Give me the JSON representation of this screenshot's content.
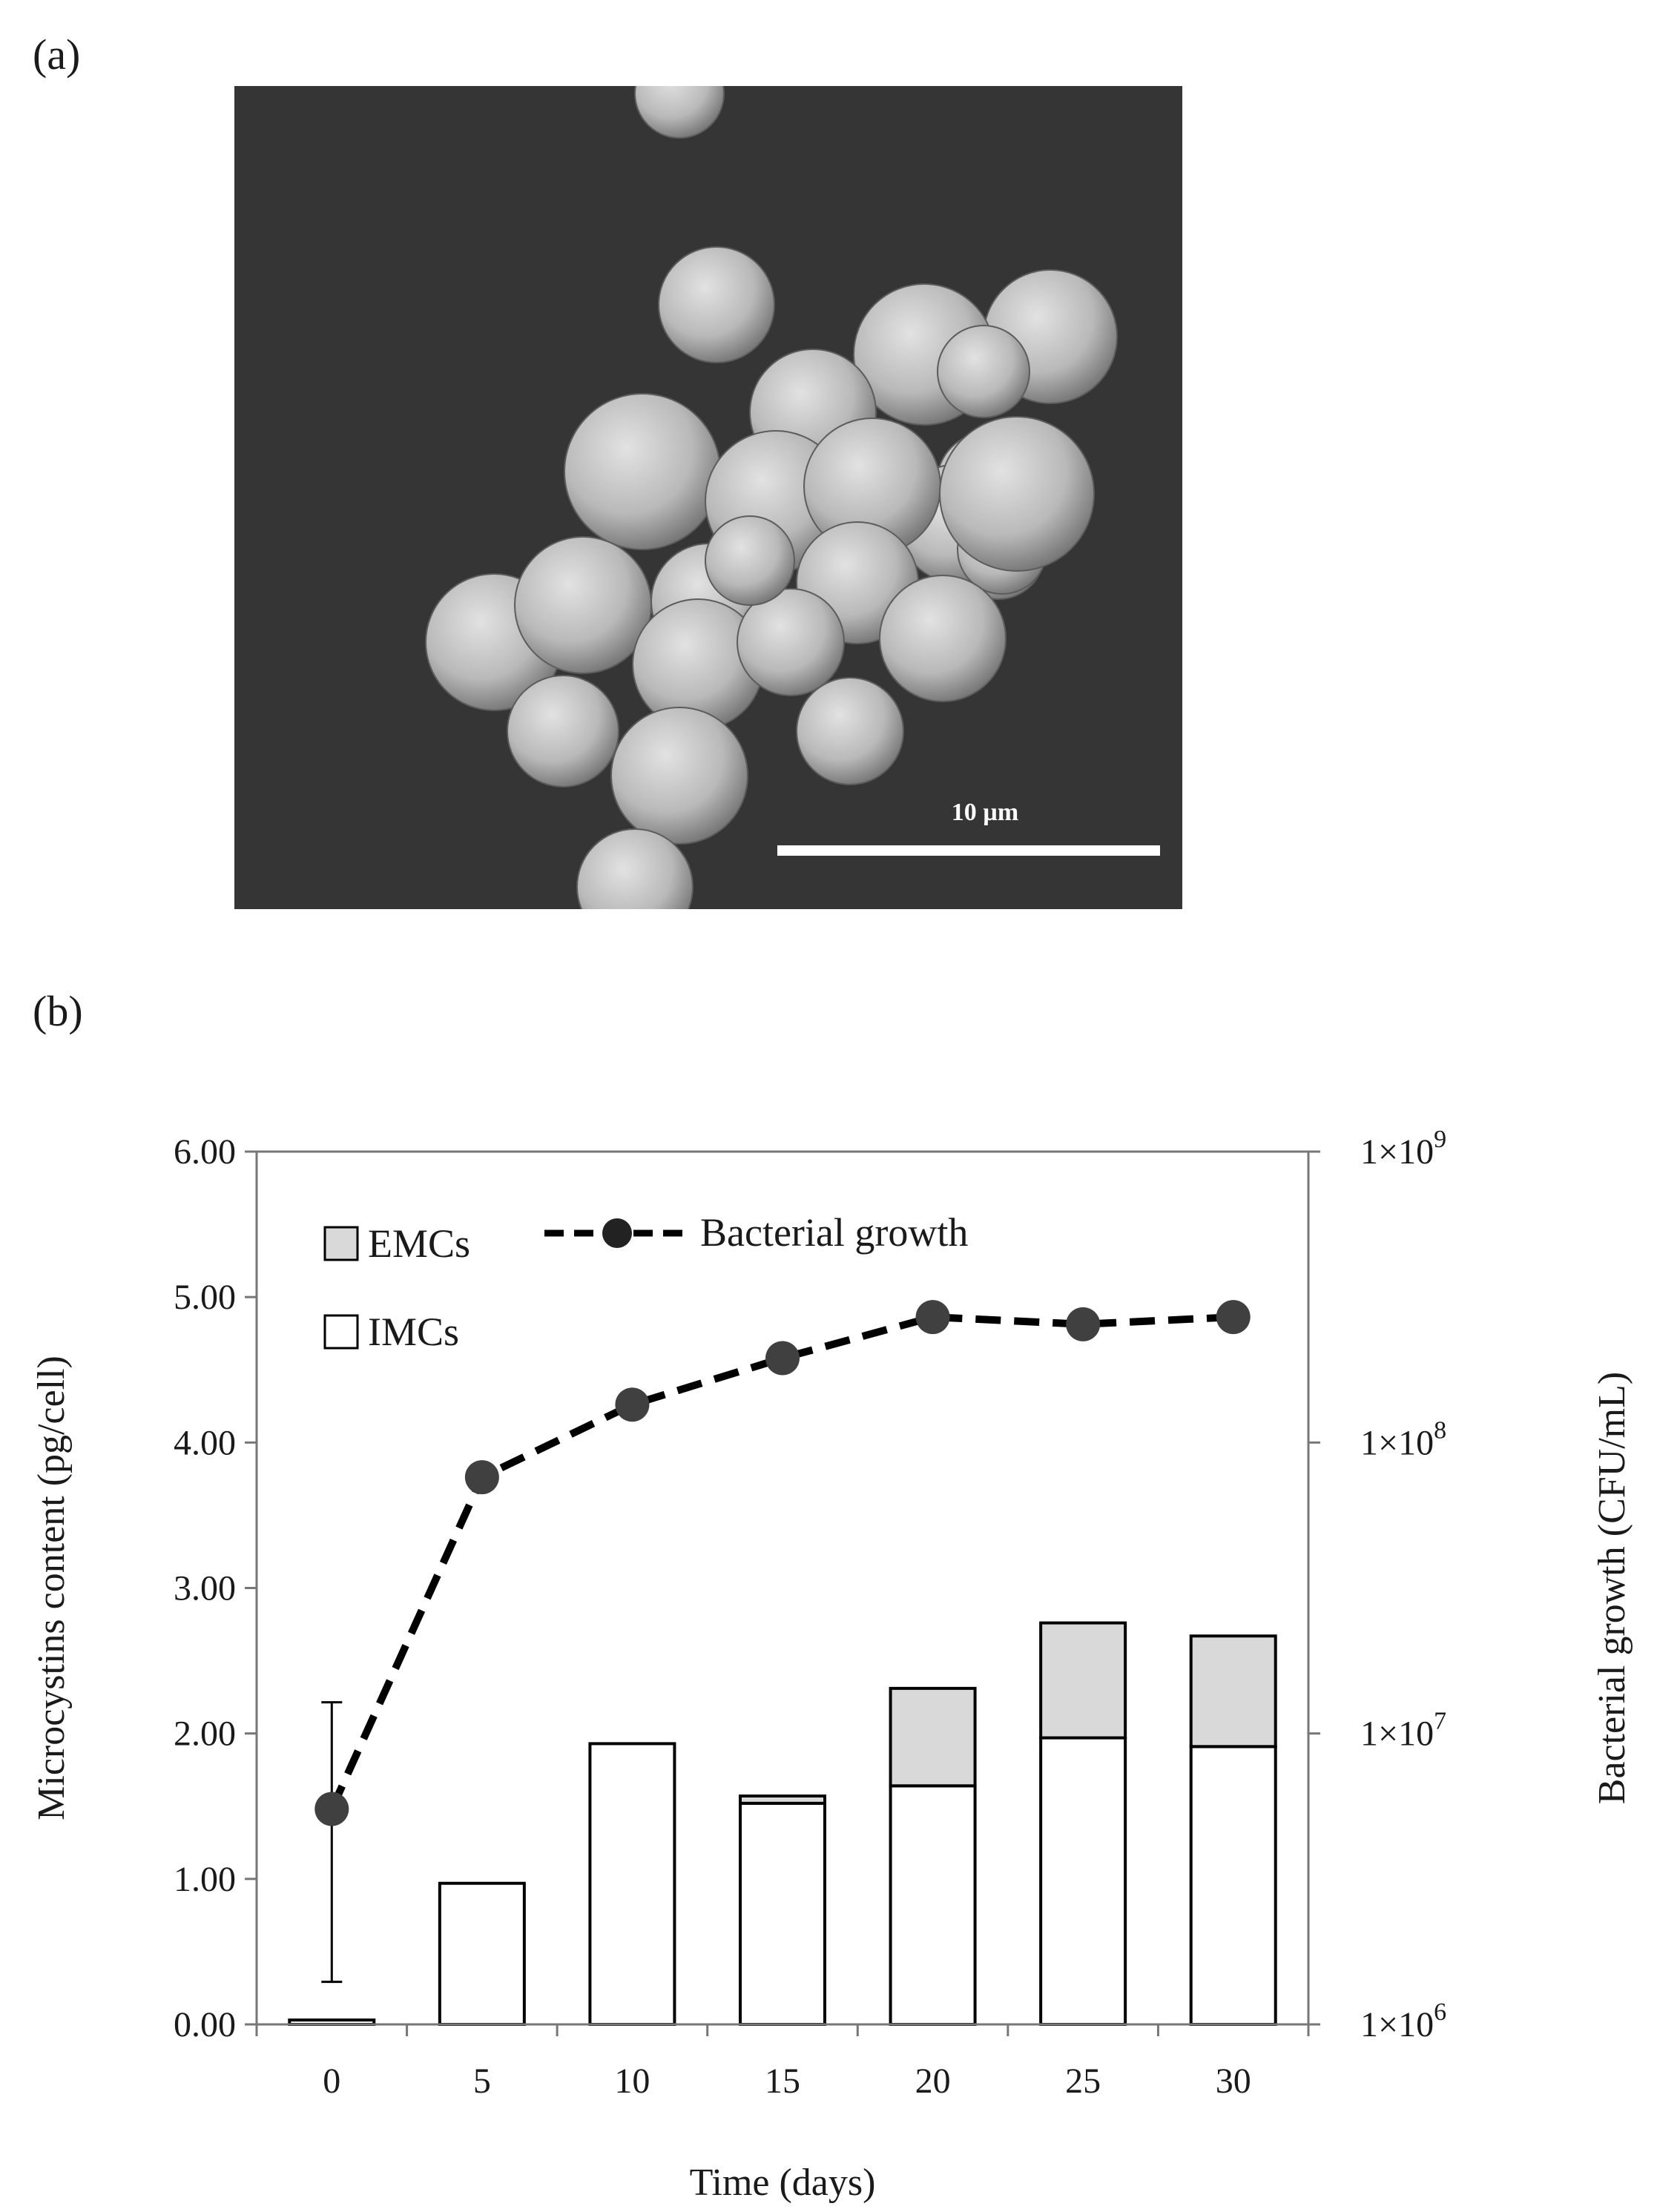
{
  "panels": {
    "a": {
      "label": "(a)",
      "scale_bar_label": "10 µm"
    },
    "b": {
      "label": "(b)"
    }
  },
  "colors": {
    "emc_fill": "#d9d9d9",
    "imc_fill": "#ffffff",
    "bar_stroke": "#000000",
    "growth_marker": "#404040",
    "growth_line": "#000000",
    "sem_background": "#333333",
    "cell_fill": "#bdbdbd"
  },
  "chart_data": {
    "type": "bar",
    "xlabel": "Time (days)",
    "ylabel": "Microcystins content (pg/cell)",
    "y2label": "Bacterial growth (CFU/mL)",
    "categories": [
      "0",
      "5",
      "10",
      "15",
      "20",
      "25",
      "30"
    ],
    "ylim": [
      0,
      6
    ],
    "yticks": [
      "0.00",
      "1.00",
      "2.00",
      "3.00",
      "4.00",
      "5.00",
      "6.00"
    ],
    "y2_scale": "log",
    "y2lim": [
      1000000,
      1000000000
    ],
    "y2ticks": [
      {
        "base": "1×10",
        "exp": "6"
      },
      {
        "base": "1×10",
        "exp": "7"
      },
      {
        "base": "1×10",
        "exp": "8"
      },
      {
        "base": "1×10",
        "exp": "9"
      }
    ],
    "stacked": true,
    "series": [
      {
        "name": "IMCs",
        "kind": "bar",
        "axis": "left",
        "values": [
          0.03,
          0.97,
          1.93,
          1.52,
          1.64,
          1.97,
          1.91
        ]
      },
      {
        "name": "EMCs",
        "kind": "bar",
        "axis": "left",
        "values": [
          0.0,
          0.0,
          0.0,
          0.05,
          0.67,
          0.79,
          0.76
        ]
      },
      {
        "name": "Bacterial growth",
        "kind": "line",
        "style": "dashed",
        "marker": "circle",
        "axis": "right",
        "values": [
          5500000,
          76000000,
          135000000,
          195000000,
          270000000,
          255000000,
          270000000
        ],
        "error_plus": [
          7300000,
          0,
          0,
          0,
          0,
          0,
          0
        ],
        "error_minus": [
          4100000,
          0,
          0,
          0,
          0,
          0,
          0
        ]
      }
    ],
    "legend": {
      "placement": "top-left",
      "order": [
        "EMCs",
        "IMCs",
        "Bacterial growth"
      ]
    },
    "grid": false
  }
}
